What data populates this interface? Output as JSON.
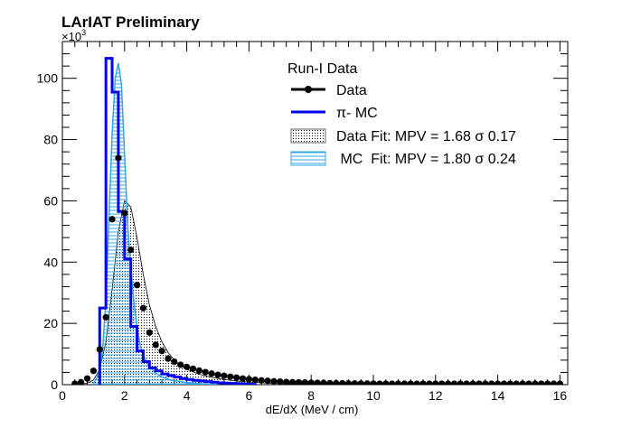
{
  "chart_data": {
    "type": "line",
    "title": "LArIAT Preliminary",
    "xlabel": "dE/dX (MeV / cm)",
    "ylabel": "",
    "y_multiplier_label": "×10",
    "y_multiplier_exponent": "3",
    "xlim": [
      0,
      16.25
    ],
    "ylim": [
      0,
      112
    ],
    "x_ticks": [
      0,
      2,
      4,
      6,
      8,
      10,
      12,
      14,
      16
    ],
    "y_ticks": [
      0,
      20,
      40,
      60,
      80,
      100
    ],
    "legend": {
      "header": "Run-I Data",
      "placement": "top-right",
      "entries": [
        {
          "label": "Data",
          "style": "marker-line",
          "color": "#000000"
        },
        {
          "label": "π- MC",
          "style": "line",
          "color": "#0000ee"
        },
        {
          "label": "Data Fit: MPV = 1.68 σ 0.17",
          "style": "dotted-fill",
          "color": "#000000"
        },
        {
          "label": " MC  Fit: MPV = 1.80 σ 0.24",
          "style": "hatched-fill",
          "color": "#33a6e6"
        }
      ]
    },
    "series": [
      {
        "name": "Data",
        "style": "markers",
        "color": "#000000",
        "x": [
          0.4,
          0.6,
          0.8,
          1.0,
          1.2,
          1.4,
          1.6,
          1.8,
          2.0,
          2.2,
          2.4,
          2.6,
          2.8,
          3.0,
          3.2,
          3.4,
          3.6,
          3.8,
          4.0,
          4.2,
          4.4,
          4.6,
          4.8,
          5.0,
          5.2,
          5.4,
          5.6,
          5.8,
          6.0,
          6.2,
          6.4,
          6.6,
          6.8,
          7.0,
          7.2,
          7.4,
          7.6,
          7.8,
          8.0,
          8.2,
          8.4,
          8.6,
          8.8,
          9.0,
          9.2,
          9.4,
          9.6,
          9.8,
          10.0,
          10.2,
          10.4,
          10.6,
          10.8,
          11.0,
          11.2,
          11.4,
          11.6,
          11.8,
          12.0,
          12.2,
          12.4,
          12.6,
          12.8,
          13.0,
          13.2,
          13.4,
          13.6,
          13.8,
          14.0,
          14.2,
          14.4,
          14.6,
          14.8,
          15.0,
          15.2,
          15.4,
          15.6,
          15.8,
          16.0
        ],
        "y": [
          0.3,
          0.8,
          2.0,
          4.5,
          11.5,
          22.0,
          54.0,
          74.0,
          56.0,
          44.0,
          32.5,
          25.0,
          17.0,
          13.0,
          11.0,
          8.5,
          7.5,
          6.5,
          5.8,
          5.2,
          4.6,
          4.1,
          3.6,
          3.2,
          2.9,
          2.6,
          2.3,
          2.0,
          1.8,
          1.6,
          1.4,
          1.25,
          1.1,
          1.0,
          0.9,
          0.8,
          0.75,
          0.7,
          0.65,
          0.6,
          0.55,
          0.5,
          0.48,
          0.45,
          0.42,
          0.4,
          0.38,
          0.36,
          0.34,
          0.32,
          0.3,
          0.3,
          0.3,
          0.3,
          0.3,
          0.3,
          0.3,
          0.3,
          0.3,
          0.3,
          0.3,
          0.3,
          0.3,
          0.3,
          0.3,
          0.3,
          0.3,
          0.3,
          0.3,
          0.3,
          0.3,
          0.3,
          0.3,
          0.3,
          0.3,
          0.3,
          0.3,
          0.3,
          0.3
        ]
      },
      {
        "name": "π- MC",
        "style": "step",
        "color": "#0000ee",
        "bin_edges": [
          1.2,
          1.4,
          1.6,
          1.8,
          2.0,
          2.2,
          2.4,
          2.6,
          2.8,
          3.0,
          3.2,
          3.4,
          3.6,
          3.8,
          4.0,
          4.2,
          4.4,
          4.6,
          4.8,
          5.0,
          5.2,
          5.4,
          5.6,
          5.8,
          6.0,
          6.2
        ],
        "values": [
          25.0,
          106.5,
          95.5,
          56.5,
          41.0,
          19.0,
          11.0,
          7.5,
          5.5,
          4.5,
          3.5,
          3.0,
          2.5,
          2.0,
          1.7,
          1.4,
          1.2,
          1.0,
          0.8,
          0.6,
          0.5,
          0.4,
          0.3,
          0.2,
          0.1
        ]
      },
      {
        "name": "Data Fit: MPV = 1.68 σ 0.17",
        "style": "dotted-fill",
        "color": "#000000",
        "x": [
          0.6,
          0.8,
          1.0,
          1.2,
          1.4,
          1.6,
          1.8,
          2.0,
          2.2,
          2.4,
          2.6,
          2.8,
          3.0,
          3.2,
          3.4,
          3.6,
          3.8,
          4.0,
          4.4,
          4.8,
          5.2,
          5.6,
          6.0,
          6.5,
          7.0,
          8.0,
          9.0
        ],
        "y": [
          0.1,
          0.5,
          1.5,
          5.0,
          14.0,
          31.0,
          50.0,
          60.0,
          58.0,
          48.0,
          36.0,
          26.0,
          19.0,
          14.0,
          10.5,
          8.0,
          6.2,
          5.0,
          3.4,
          2.4,
          1.7,
          1.2,
          0.85,
          0.55,
          0.35,
          0.15,
          0.05
        ]
      },
      {
        "name": " MC  Fit: MPV = 1.80 σ 0.24",
        "style": "hatched-fill",
        "color": "#33a6e6",
        "x": [
          1.0,
          1.1,
          1.2,
          1.3,
          1.4,
          1.5,
          1.6,
          1.7,
          1.8,
          1.9,
          2.0,
          2.1,
          2.2,
          2.3,
          2.4,
          2.5,
          2.6,
          2.8,
          3.0,
          3.2,
          3.5,
          4.0,
          4.5,
          5.0
        ],
        "y": [
          0.5,
          2.0,
          5.0,
          12.0,
          28.0,
          55.0,
          82.0,
          100.0,
          105.0,
          98.0,
          75.0,
          52.0,
          38.0,
          27.0,
          19.0,
          13.0,
          9.5,
          6.0,
          3.8,
          2.5,
          1.5,
          0.7,
          0.3,
          0.1
        ]
      }
    ]
  }
}
